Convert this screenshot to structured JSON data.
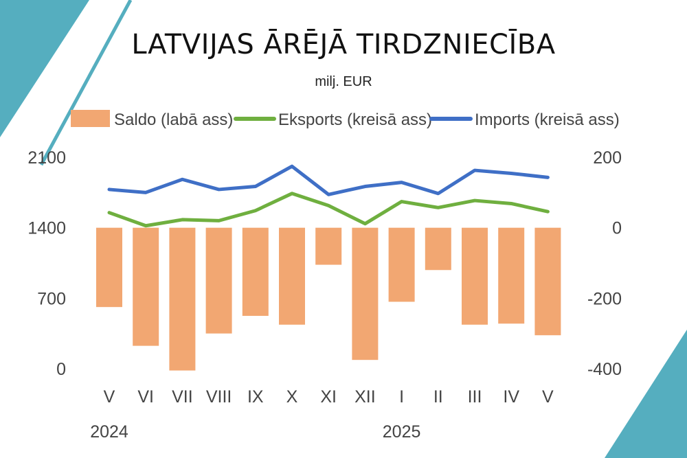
{
  "title": "LATVIJAS ĀRĒJĀ TIRDZNIECĪBA",
  "subtitle": "milj. EUR",
  "colors": {
    "saldo": "#F2A772",
    "eksports": "#6FAF3F",
    "imports": "#3F6FC6",
    "decor": "#55AEBF"
  },
  "chart_data": {
    "type": "bar+line",
    "categories": [
      "V",
      "VI",
      "VII",
      "VIII",
      "IX",
      "X",
      "XI",
      "XII",
      "I",
      "II",
      "III",
      "IV",
      "V"
    ],
    "year_labels": [
      {
        "label": "2024",
        "category_index": 0
      },
      {
        "label": "2025",
        "category_index": 8
      }
    ],
    "left_axis": {
      "ylim": [
        0,
        2100
      ],
      "ticks": [
        0,
        700,
        1400,
        2100
      ]
    },
    "right_axis": {
      "ylim": [
        -400,
        200
      ],
      "ticks": [
        -400,
        -200,
        0,
        200
      ]
    },
    "series": [
      {
        "name": "Saldo (labā ass)",
        "type": "bar",
        "axis": "right",
        "values": [
          -225,
          -335,
          -405,
          -300,
          -250,
          -275,
          -105,
          -375,
          -210,
          -120,
          -275,
          -272,
          -305
        ]
      },
      {
        "name": "Eksports (kreisā ass)",
        "type": "line",
        "axis": "left",
        "values": [
          1550,
          1420,
          1480,
          1470,
          1570,
          1740,
          1620,
          1440,
          1660,
          1600,
          1670,
          1640,
          1560
        ]
      },
      {
        "name": "Imports (kreisā ass)",
        "type": "line",
        "axis": "left",
        "values": [
          1780,
          1750,
          1880,
          1780,
          1810,
          2010,
          1730,
          1810,
          1850,
          1740,
          1970,
          1940,
          1900
        ]
      }
    ],
    "legend_position": "top"
  }
}
